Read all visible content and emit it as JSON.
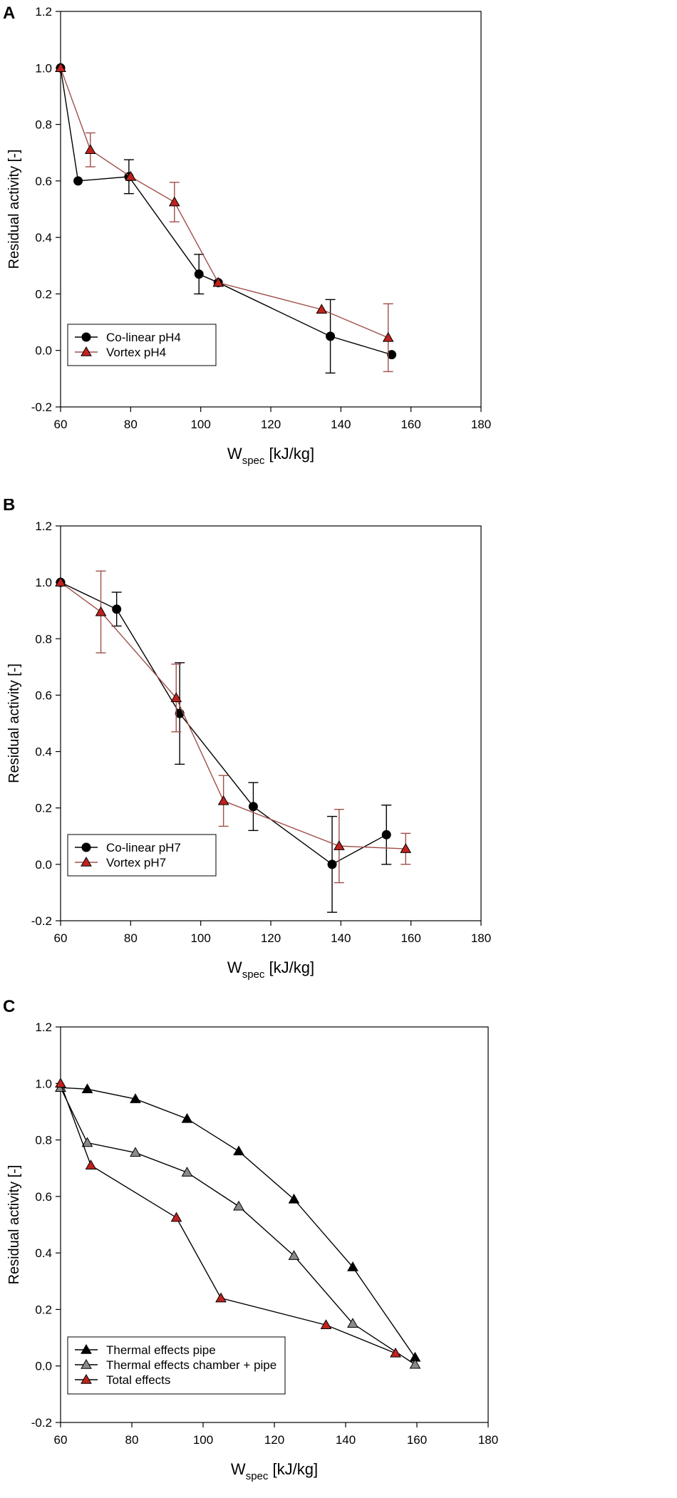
{
  "chart_data": [
    {
      "id": "A",
      "panel_label": "A",
      "type": "line",
      "ylabel": "Residual activity [-]",
      "xlabel_main": "W",
      "xlabel_sub": "spec",
      "xlabel_unit": "[kJ/kg]",
      "xlim": [
        60,
        180
      ],
      "ylim": [
        -0.2,
        1.2
      ],
      "xticks": [
        "60",
        "80",
        "100",
        "120",
        "140",
        "160",
        "180"
      ],
      "yticks": [
        "-0.2",
        "0.0",
        "0.2",
        "0.4",
        "0.6",
        "0.8",
        "1.0",
        "1.2"
      ],
      "legend_position": "bottom-left",
      "series": [
        {
          "name": "Co-linear pH4",
          "marker": "circle",
          "color": "#000000",
          "line_color": "#000000",
          "x": [
            60,
            65,
            79.5,
            99.5,
            105,
            137,
            154.5
          ],
          "y": [
            1.0,
            0.6,
            0.615,
            0.27,
            0.24,
            0.05,
            -0.015
          ],
          "err": [
            0,
            0,
            0.06,
            0.07,
            0,
            0.13,
            0
          ]
        },
        {
          "name": "Vortex pH4",
          "marker": "triangle",
          "color": "#c0221e",
          "line_color": "#a0504a",
          "x": [
            60,
            68.5,
            80,
            92.5,
            105,
            134.5,
            153.5
          ],
          "y": [
            1.0,
            0.71,
            0.615,
            0.525,
            0.24,
            0.145,
            0.045
          ],
          "err": [
            0,
            0.06,
            0,
            0.07,
            0,
            0,
            0.12
          ]
        }
      ]
    },
    {
      "id": "B",
      "panel_label": "B",
      "type": "line",
      "ylabel": "Residual activity [-]",
      "xlabel_main": "W",
      "xlabel_sub": "spec",
      "xlabel_unit": "[kJ/kg]",
      "xlim": [
        60,
        180
      ],
      "ylim": [
        -0.2,
        1.2
      ],
      "xticks": [
        "60",
        "80",
        "100",
        "120",
        "140",
        "160",
        "180"
      ],
      "yticks": [
        "-0.2",
        "0.0",
        "0.2",
        "0.4",
        "0.6",
        "0.8",
        "1.0",
        "1.2"
      ],
      "legend_position": "bottom-left",
      "series": [
        {
          "name": "Co-linear pH7",
          "marker": "circle",
          "color": "#000000",
          "line_color": "#000000",
          "x": [
            60,
            76,
            94,
            115,
            137.5,
            153
          ],
          "y": [
            1.0,
            0.905,
            0.535,
            0.205,
            0.0,
            0.105
          ],
          "err": [
            0,
            0.06,
            0.18,
            0.085,
            0.17,
            0.105
          ]
        },
        {
          "name": "Vortex pH7",
          "marker": "triangle",
          "color": "#c0221e",
          "line_color": "#a0504a",
          "x": [
            60,
            71.5,
            93,
            106.5,
            139.5,
            158.5
          ],
          "y": [
            1.0,
            0.895,
            0.59,
            0.225,
            0.065,
            0.055
          ],
          "err": [
            0,
            0.145,
            0.12,
            0.09,
            0.13,
            0.055
          ]
        }
      ]
    },
    {
      "id": "C",
      "panel_label": "C",
      "type": "line",
      "ylabel": "Residual activity [-]",
      "xlabel_main": "W",
      "xlabel_sub": "spec",
      "xlabel_unit": "[kJ/kg]",
      "xlim": [
        60,
        180
      ],
      "ylim": [
        -0.2,
        1.2
      ],
      "xticks": [
        "60",
        "80",
        "100",
        "120",
        "140",
        "160",
        "180"
      ],
      "yticks": [
        "-0.2",
        "0.0",
        "0.2",
        "0.4",
        "0.6",
        "0.8",
        "1.0",
        "1.2"
      ],
      "legend_position": "bottom-left",
      "series": [
        {
          "name": "Thermal effects pipe",
          "marker": "triangle",
          "color": "#000000",
          "line_color": "#000000",
          "x": [
            60,
            67.5,
            81,
            95.5,
            110,
            125.5,
            142,
            159.5
          ],
          "y": [
            0.985,
            0.98,
            0.945,
            0.875,
            0.76,
            0.59,
            0.35,
            0.03
          ],
          "err": [
            0,
            0,
            0,
            0,
            0,
            0,
            0,
            0
          ]
        },
        {
          "name": "Thermal effects chamber + pipe",
          "marker": "triangle",
          "color": "#8a8a8a",
          "line_color": "#000000",
          "x": [
            60,
            67.5,
            81,
            95.5,
            110,
            125.5,
            142,
            159.5
          ],
          "y": [
            0.985,
            0.79,
            0.755,
            0.685,
            0.565,
            0.39,
            0.15,
            0.005
          ],
          "err": [
            0,
            0,
            0,
            0,
            0,
            0,
            0,
            0
          ]
        },
        {
          "name": "Total effects",
          "marker": "triangle",
          "color": "#c0221e",
          "line_color": "#000000",
          "x": [
            60,
            68.5,
            92.5,
            105,
            134.5,
            154
          ],
          "y": [
            1.0,
            0.71,
            0.525,
            0.24,
            0.145,
            0.045
          ],
          "err": [
            0,
            0,
            0,
            0,
            0,
            0
          ]
        }
      ]
    }
  ]
}
